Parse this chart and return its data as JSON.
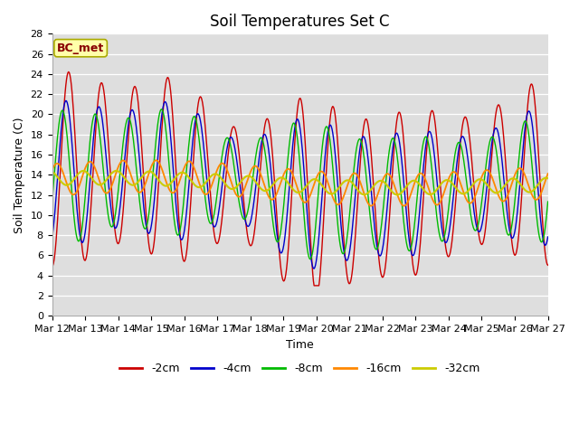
{
  "title": "Soil Temperatures Set C",
  "xlabel": "Time",
  "ylabel": "Soil Temperature (C)",
  "annotation": "BC_met",
  "x_tick_labels": [
    "Mar 12",
    "Mar 13",
    "Mar 14",
    "Mar 15",
    "Mar 16",
    "Mar 17",
    "Mar 18",
    "Mar 19",
    "Mar 20",
    "Mar 21",
    "Mar 22",
    "Mar 23",
    "Mar 24",
    "Mar 25",
    "Mar 26",
    "Mar 27"
  ],
  "ylim": [
    0,
    28
  ],
  "n_days": 15,
  "legend": [
    {
      "label": "-2cm",
      "color": "#cc0000"
    },
    {
      "label": "-4cm",
      "color": "#0000cc"
    },
    {
      "label": "-8cm",
      "color": "#00bb00"
    },
    {
      "label": "-16cm",
      "color": "#ff8800"
    },
    {
      "label": "-32cm",
      "color": "#cccc00"
    }
  ],
  "plot_bg_color": "#dedede",
  "title_fontsize": 12,
  "axis_label_fontsize": 9,
  "tick_fontsize": 8,
  "legend_fontsize": 9
}
